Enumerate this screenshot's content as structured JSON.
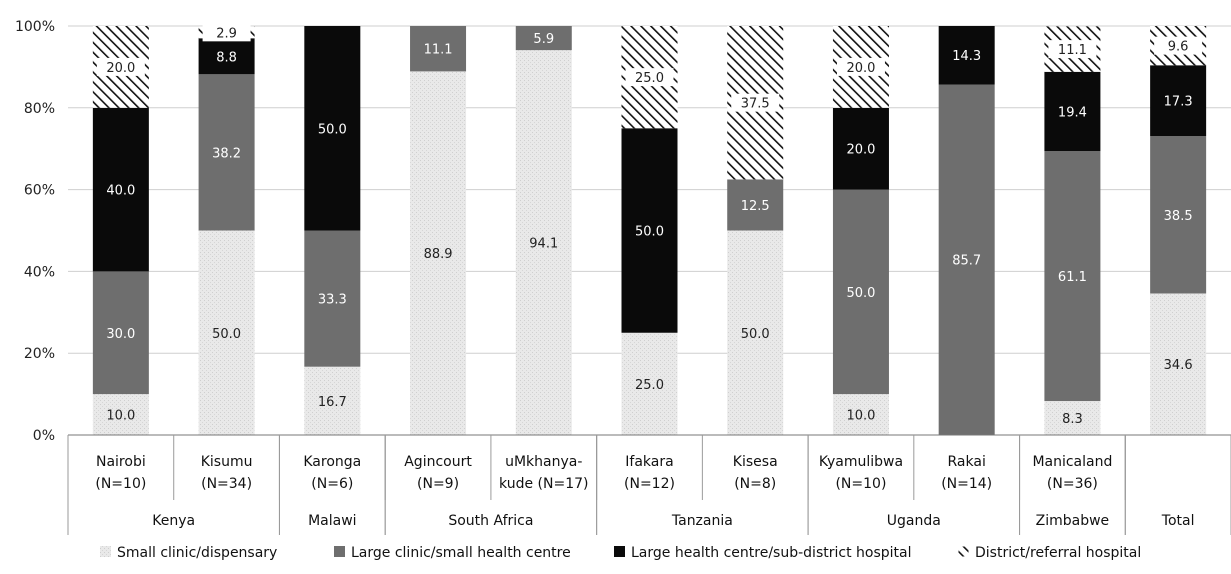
{
  "chart_data": {
    "type": "bar",
    "stacked": true,
    "ylim": [
      0,
      100
    ],
    "yticks": [
      "0%",
      "20%",
      "40%",
      "60%",
      "80%",
      "100%"
    ],
    "categories": [
      {
        "line1": "Nairobi",
        "line2": "(N=10)"
      },
      {
        "line1": "Kisumu",
        "line2": "(N=34)"
      },
      {
        "line1": "Karonga",
        "line2": "(N=6)"
      },
      {
        "line1": "Agincourt",
        "line2": "(N=9)"
      },
      {
        "line1": "uMkhanya-",
        "line2": "kude (N=17)"
      },
      {
        "line1": "Ifakara",
        "line2": "(N=12)"
      },
      {
        "line1": "Kisesa",
        "line2": "(N=8)"
      },
      {
        "line1": "Kyamulibwa",
        "line2": "(N=10)"
      },
      {
        "line1": "Rakai",
        "line2": "(N=14)"
      },
      {
        "line1": "Manicaland",
        "line2": "(N=36)"
      },
      {
        "line1": "",
        "line2": ""
      }
    ],
    "groups": [
      {
        "label": "Kenya",
        "span": [
          0,
          1
        ]
      },
      {
        "label": "Malawi",
        "span": [
          2,
          2
        ]
      },
      {
        "label": "South Africa",
        "span": [
          3,
          4
        ]
      },
      {
        "label": "Tanzania",
        "span": [
          5,
          6
        ]
      },
      {
        "label": "Uganda",
        "span": [
          7,
          8
        ]
      },
      {
        "label": "Zimbabwe",
        "span": [
          9,
          9
        ]
      },
      {
        "label": "Total",
        "span": [
          10,
          10
        ]
      }
    ],
    "series": [
      {
        "name": "Small clinic/dispensary",
        "style": "light",
        "values": [
          10.0,
          50.0,
          16.7,
          88.9,
          94.1,
          25.0,
          50.0,
          10.0,
          0,
          8.3,
          34.6
        ],
        "labels": [
          "10.0",
          "50.0",
          "16.7",
          "88.9",
          "94.1",
          "25.0",
          "50.0",
          "10.0",
          "",
          "8.3",
          "34.6"
        ]
      },
      {
        "name": "Large clinic/small health centre",
        "style": "gray",
        "values": [
          30.0,
          38.2,
          33.3,
          11.1,
          5.9,
          0,
          12.5,
          50.0,
          85.7,
          61.1,
          38.5
        ],
        "labels": [
          "30.0",
          "38.2",
          "33.3",
          "11.1",
          "5.9",
          "",
          "12.5",
          "50.0",
          "85.7",
          "61.1",
          "38.5"
        ]
      },
      {
        "name": "Large health centre/sub-district hospital",
        "style": "black",
        "values": [
          40.0,
          8.8,
          50.0,
          0,
          0,
          50.0,
          0,
          20.0,
          14.3,
          19.4,
          17.3
        ],
        "labels": [
          "40.0",
          "8.8",
          "50.0",
          "",
          "",
          "50.0",
          "",
          "20.0",
          "14.3",
          "19.4",
          "17.3"
        ]
      },
      {
        "name": "District/referral hospital",
        "style": "hatch",
        "values": [
          20.0,
          2.9,
          0,
          0,
          0,
          25.0,
          37.5,
          20.0,
          0,
          11.1,
          9.6
        ],
        "labels": [
          "20.0",
          "2.9",
          "",
          "",
          "",
          "25.0",
          "37.5",
          "20.0",
          "",
          "11.1",
          "9.6"
        ]
      }
    ],
    "colors": {
      "light": "#e6e6e6",
      "gray": "#6e6e6e",
      "black": "#0a0a0a",
      "hatch_line": "#111111"
    },
    "legend_position": "bottom"
  }
}
